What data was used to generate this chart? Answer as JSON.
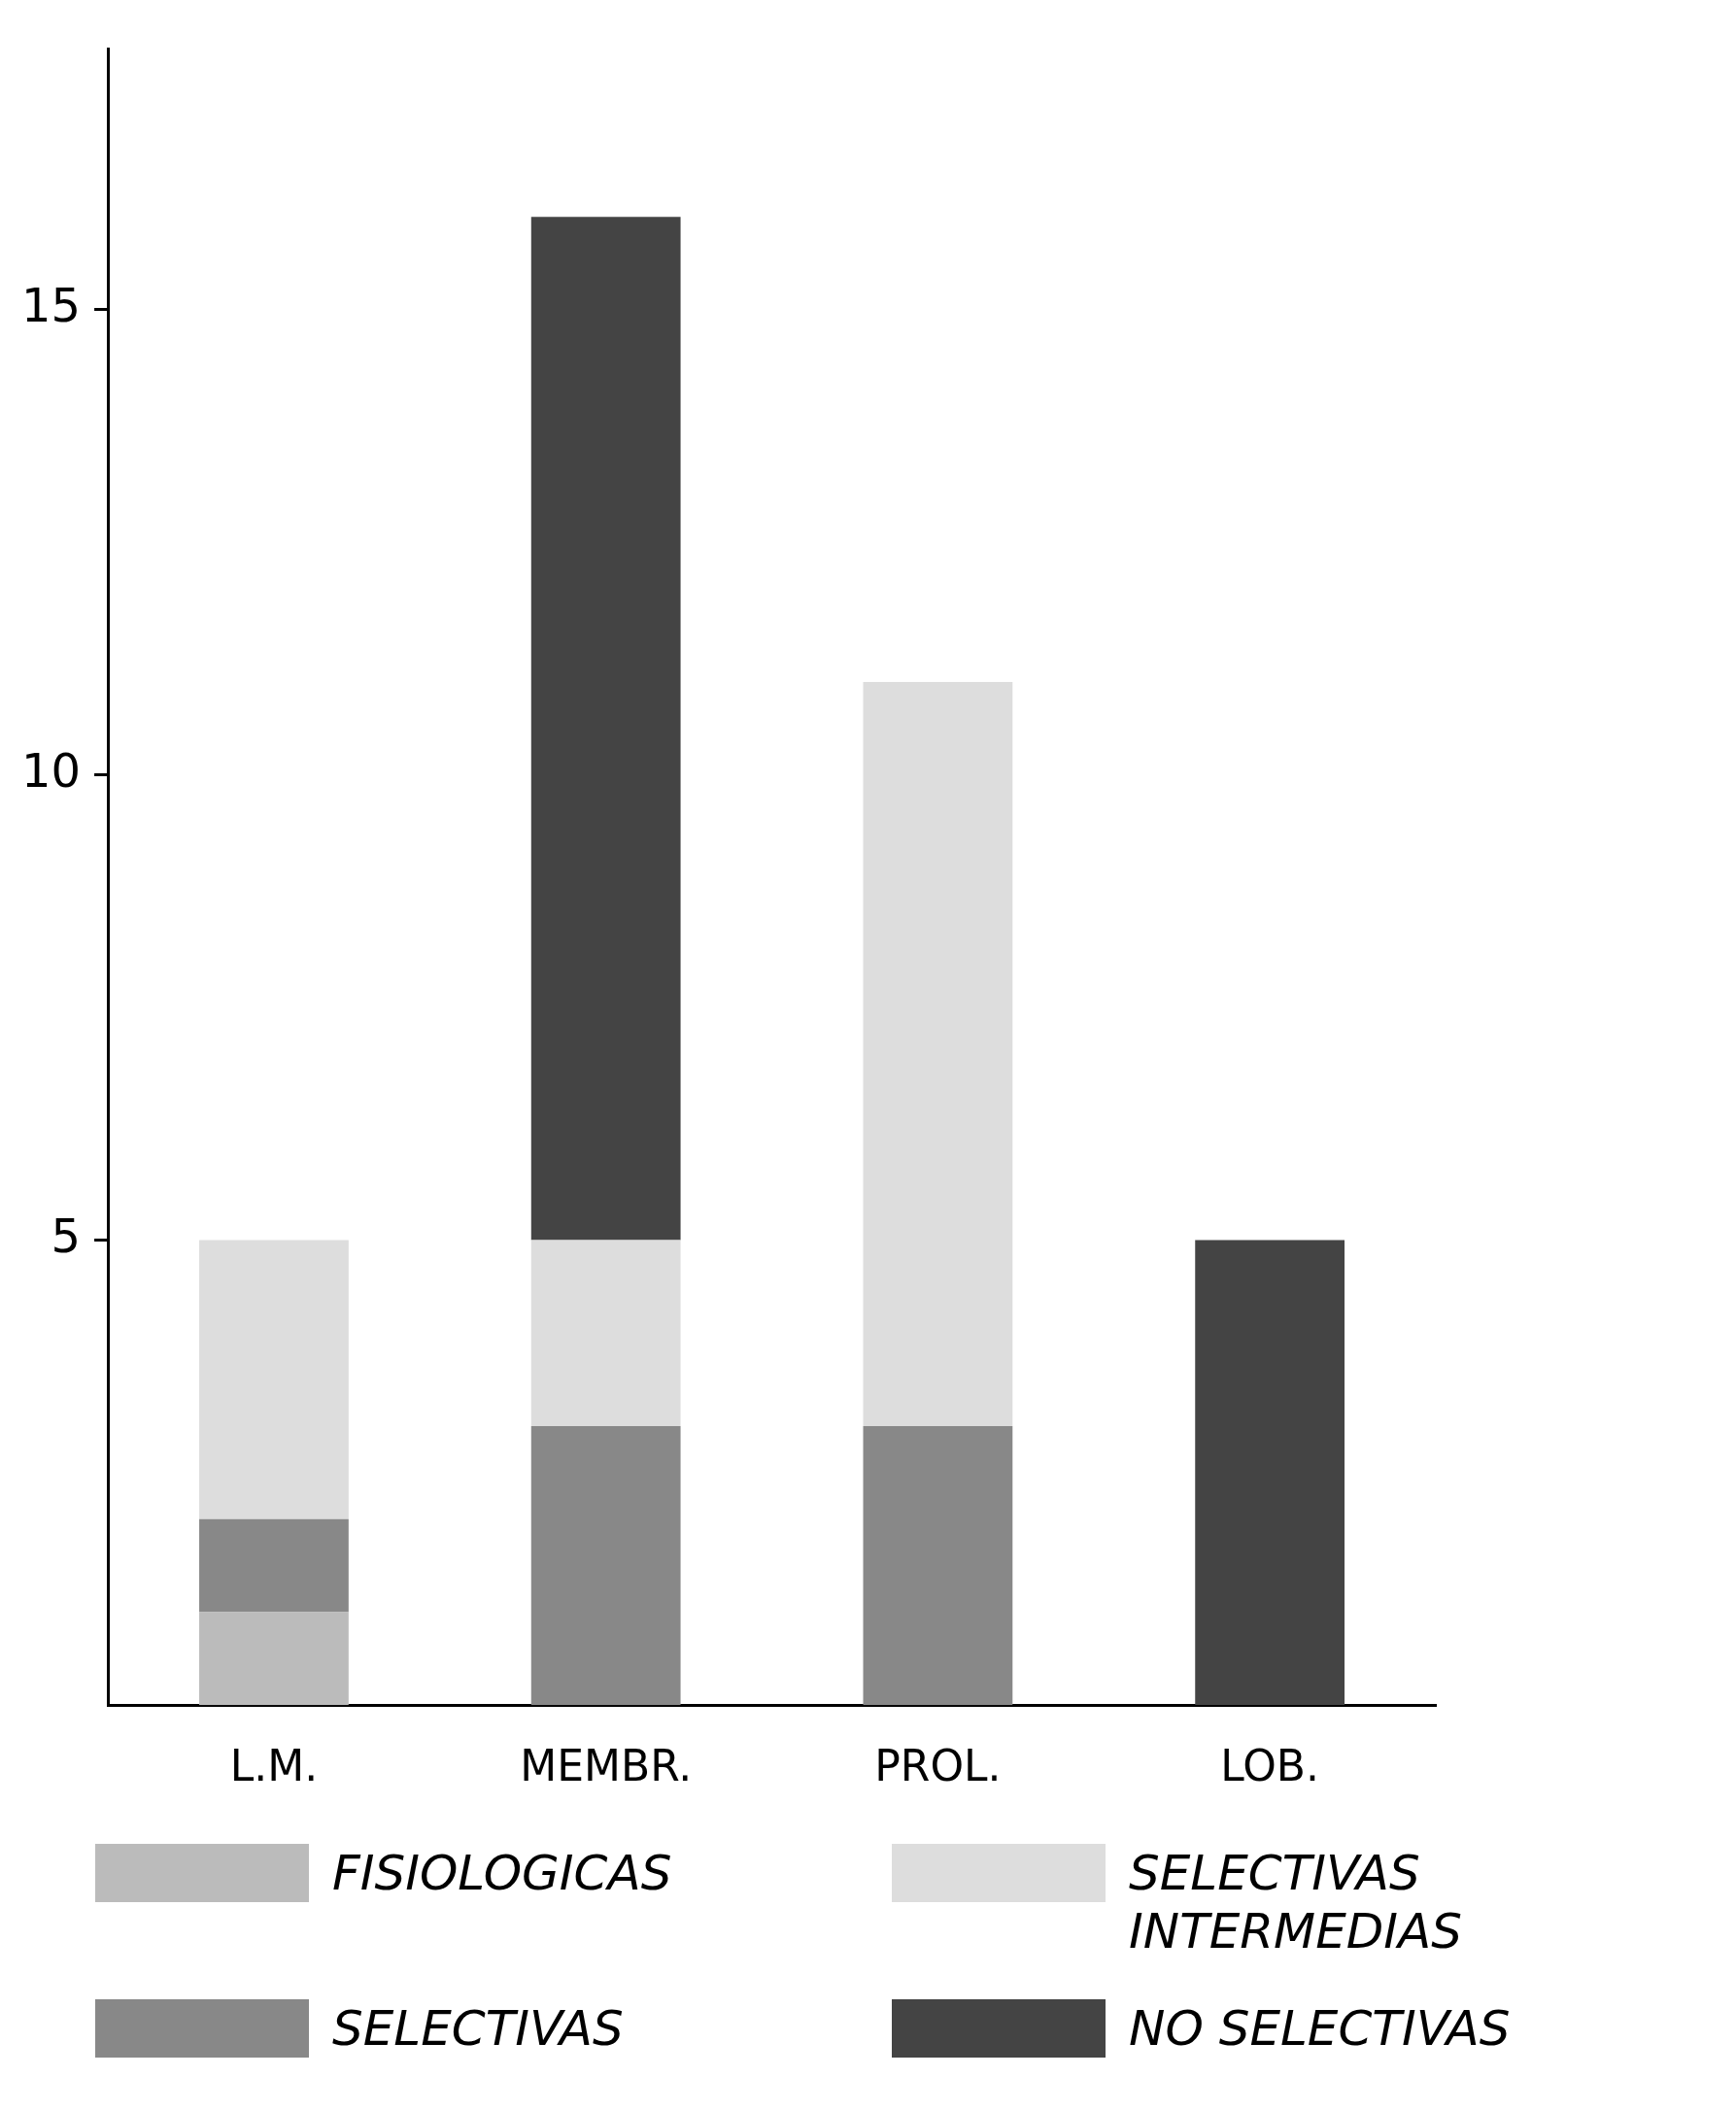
{
  "chart_data": {
    "type": "bar",
    "stacked": true,
    "categories": [
      "L.M.",
      "MEMBR.",
      "PROL.",
      "LOB."
    ],
    "series": [
      {
        "name": "FISIOLOGICAS",
        "color": "#bbbbbb",
        "values": [
          1,
          null,
          null,
          null
        ]
      },
      {
        "name": "SELECTIVAS",
        "color": "#888888",
        "values": [
          1,
          3,
          3,
          null
        ]
      },
      {
        "name": "SELECTIVAS INTERMEDIAS",
        "color": "#dddddd",
        "values": [
          3,
          2,
          8,
          null
        ]
      },
      {
        "name": "NO SELECTIVAS",
        "color": "#444444",
        "values": [
          null,
          11,
          null,
          5
        ]
      }
    ],
    "ylim": [
      0,
      17.8
    ],
    "yticks": [
      5,
      10,
      15
    ],
    "grid": false,
    "legend": "bottom"
  }
}
